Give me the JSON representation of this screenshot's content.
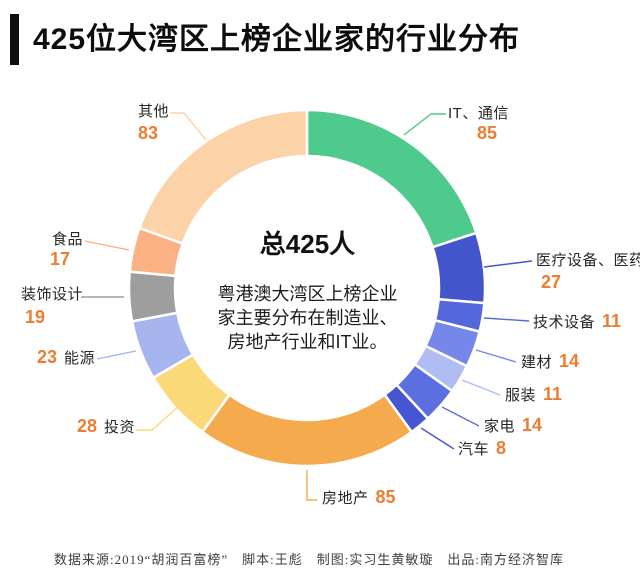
{
  "title": {
    "text": "425位大湾区上榜企业家的行业分布"
  },
  "center": {
    "total_label": "总425人",
    "description_lines": [
      "粤港澳大湾区上榜企业",
      "家主要分布在制造业、",
      "房地产行业和IT业。"
    ]
  },
  "footer": {
    "text": "数据来源:2019“胡润百富榜”　脚本:王彪　制图:实习生黄敏璇　出品:南方经济智库"
  },
  "colors": {
    "value_text": "#ed7d31",
    "label_text": "#262626",
    "title_text": "#0d0d0d",
    "accent_bar": "#0d0d0d",
    "segment_gap": "#ffffff"
  },
  "chart_data": {
    "type": "pie",
    "subtype": "donut",
    "title": "425位大湾区上榜企业家的行业分布",
    "total": 425,
    "unit": "人",
    "start_angle_deg": 0,
    "direction": "clockwise",
    "center_note": "粤港澳大湾区上榜企业家主要分布在制造业、房地产行业和IT业。",
    "segments": [
      {
        "label": "IT、通信",
        "value": 85,
        "color": "#4fca8d"
      },
      {
        "label": "医疗设备、医药",
        "value": 27,
        "color": "#4355cb"
      },
      {
        "label": "技术设备",
        "value": 11,
        "color": "#5468dc"
      },
      {
        "label": "建材",
        "value": 14,
        "color": "#7587e8"
      },
      {
        "label": "服装",
        "value": 11,
        "color": "#b0bcf4"
      },
      {
        "label": "家电",
        "value": 14,
        "color": "#5b6fe0"
      },
      {
        "label": "汽车",
        "value": 8,
        "color": "#4655d2"
      },
      {
        "label": "房地产",
        "value": 85,
        "color": "#f6aa4e"
      },
      {
        "label": "投资",
        "value": 28,
        "color": "#fcd978"
      },
      {
        "label": "能源",
        "value": 23,
        "color": "#a7b5ee"
      },
      {
        "label": "装饰设计",
        "value": 19,
        "color": "#9e9e9e"
      },
      {
        "label": "食品",
        "value": 17,
        "color": "#fbb183"
      },
      {
        "label": "其他",
        "value": 83,
        "color": "#fcd2a8"
      }
    ]
  }
}
